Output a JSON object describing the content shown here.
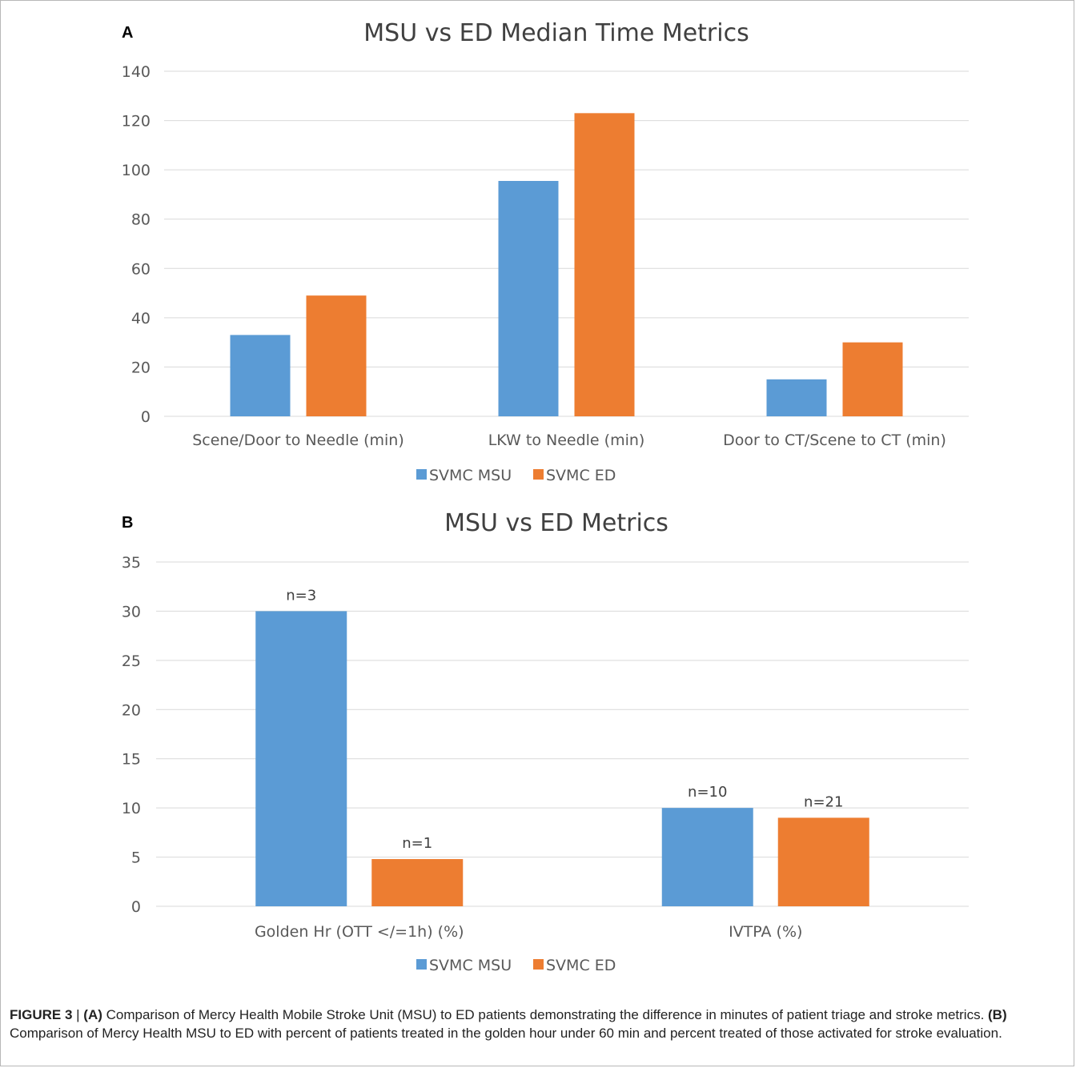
{
  "colors": {
    "msu": "#5b9bd5",
    "ed": "#ed7d31",
    "grid": "#d9d9d9",
    "text": "#595959"
  },
  "panels": {
    "a": {
      "letter": "A"
    },
    "b": {
      "letter": "B"
    }
  },
  "caption": {
    "figure_label": "FIGURE 3",
    "separator": " | ",
    "a_label": "(A)",
    "a_text": " Comparison of Mercy Health Mobile Stroke Unit (MSU) to ED patients demonstrating the difference in minutes of patient triage and stroke metrics. ",
    "b_label": "(B)",
    "b_text": " Comparison of Mercy Health MSU to ED with percent of patients treated in the golden hour under 60 min and percent treated of those activated for stroke evaluation."
  },
  "chart_data": [
    {
      "type": "bar",
      "title": "MSU vs ED Median Time Metrics",
      "xlabel": "",
      "ylabel": "",
      "ylim": [
        0,
        140
      ],
      "yticks": [
        0,
        20,
        40,
        60,
        80,
        100,
        120,
        140
      ],
      "grid": true,
      "legend": "bottom",
      "categories": [
        "Scene/Door to Needle (min)",
        "LKW to Needle (min)",
        "Door to CT/Scene to CT (min)"
      ],
      "series": [
        {
          "name": "SVMC MSU",
          "values": [
            33,
            95.5,
            15
          ],
          "labels": []
        },
        {
          "name": "SVMC ED",
          "values": [
            49,
            123,
            30
          ],
          "labels": []
        }
      ]
    },
    {
      "type": "bar",
      "title": "MSU vs ED Metrics",
      "xlabel": "",
      "ylabel": "",
      "ylim": [
        0,
        35
      ],
      "yticks": [
        0,
        5,
        10,
        15,
        20,
        25,
        30,
        35
      ],
      "grid": true,
      "legend": "bottom",
      "categories": [
        "Golden Hr (OTT </=1h) (%)",
        "IVTPA (%)"
      ],
      "series": [
        {
          "name": "SVMC MSU",
          "values": [
            30,
            10
          ],
          "labels": [
            "n=3",
            "n=10"
          ]
        },
        {
          "name": "SVMC ED",
          "values": [
            4.8,
            9
          ],
          "labels": [
            "n=1",
            "n=21"
          ]
        }
      ]
    }
  ]
}
